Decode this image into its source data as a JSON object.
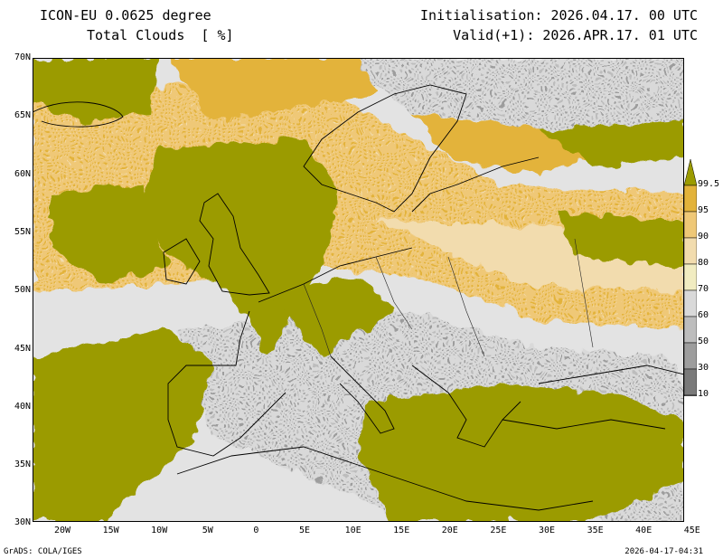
{
  "header": {
    "model": "ICON-EU 0.0625 degree",
    "variable": "Total Clouds  [ %]",
    "init": "Initialisation: 2026.04.17. 00 UTC",
    "valid": "Valid(+1): 2026.APR.17. 01 UTC"
  },
  "lat_labels": [
    "70N",
    "65N",
    "60N",
    "55N",
    "50N",
    "45N",
    "40N",
    "35N",
    "30N"
  ],
  "lon_labels": [
    "20W",
    "15W",
    "10W",
    "5W",
    "0",
    "5E",
    "10E",
    "15E",
    "20E",
    "25E",
    "30E",
    "35E",
    "40E",
    "45E"
  ],
  "colorbar": {
    "levels": [
      "99.5",
      "95",
      "90",
      "80",
      "70",
      "60",
      "50",
      "30",
      "10"
    ],
    "colors": [
      "#9b9b00",
      "#e3b33a",
      "#efc877",
      "#f2dcae",
      "#f1ecc1",
      "#d9d9d9",
      "#bdbdbd",
      "#9d9d9d",
      "#7a7a7a",
      "#595959"
    ]
  },
  "footer": {
    "left": "GrADS: COLA/IGES",
    "right": "2026-04-17-04:31"
  }
}
